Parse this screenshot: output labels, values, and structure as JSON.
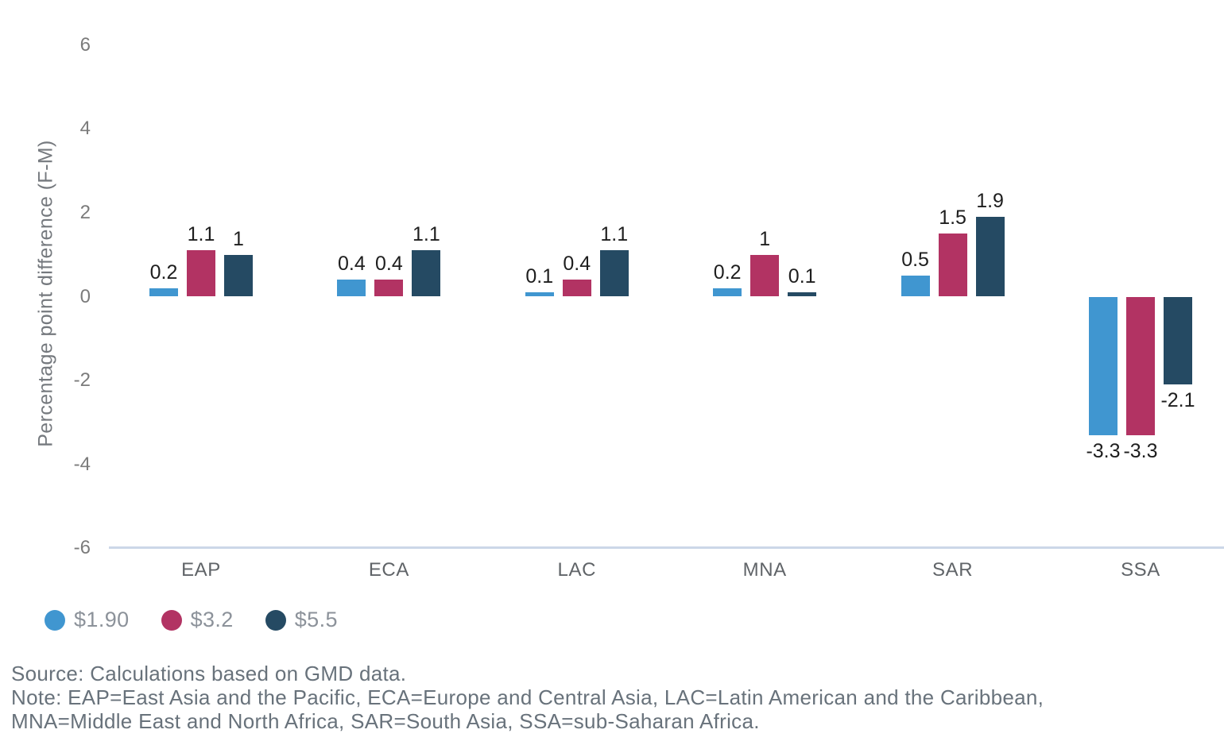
{
  "chart_data": {
    "type": "bar",
    "categories": [
      "EAP",
      "ECA",
      "LAC",
      "MNA",
      "SAR",
      "SSA"
    ],
    "series": [
      {
        "name": "$1.90",
        "color": "#4096d0",
        "values": [
          0.2,
          0.4,
          0.1,
          0.2,
          0.5,
          -3.3
        ]
      },
      {
        "name": "$3.2",
        "color": "#b23363",
        "values": [
          1.1,
          0.4,
          0.4,
          1.0,
          1.5,
          -3.3
        ]
      },
      {
        "name": "$5.5",
        "color": "#254a63",
        "values": [
          1.0,
          1.1,
          1.1,
          0.1,
          1.9,
          -2.1
        ]
      }
    ],
    "ylabel": "Percentage point difference (F-M)",
    "ylim": [
      -6,
      6
    ],
    "yticks": [
      6,
      4,
      2,
      0,
      -2,
      -4,
      -6
    ],
    "grid": false,
    "legend_position": "bottom-left",
    "value_labels_shown": true
  },
  "colors": {
    "axis_line": "#ccd7e8",
    "tick_label": "#7b7b7b",
    "category_label": "#606468",
    "value_label": "#1e1e1e",
    "legend_label": "#8c929a",
    "footer_text": "#68727b"
  },
  "footer": {
    "source": "Source: Calculations based on GMD data.",
    "note_line1": "Note: EAP=East Asia and the Pacific, ECA=Europe and Central Asia, LAC=Latin American and the Caribbean,",
    "note_line2": "MNA=Middle East and North Africa, SAR=South Asia, SSA=sub-Saharan Africa."
  }
}
